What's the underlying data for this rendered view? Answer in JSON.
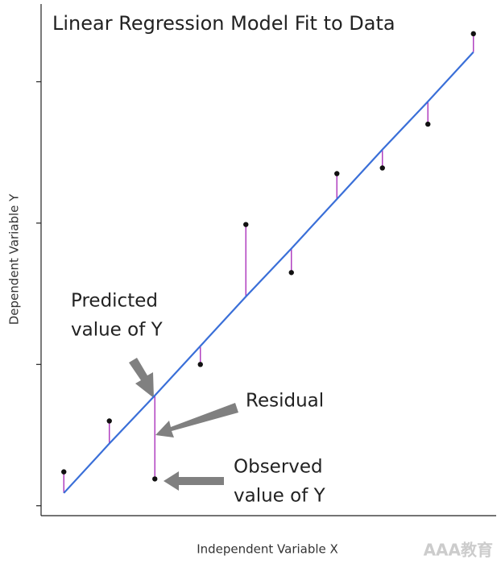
{
  "chart_data": {
    "type": "regression",
    "title": "Linear Regression Model Fit to Data",
    "x_label": "Independent Variable X",
    "y_label": "Dependent Variable Y",
    "x": [
      1,
      2,
      3,
      4,
      5,
      6,
      7,
      8,
      9,
      10
    ],
    "values": [
      0.24,
      0.6,
      0.19,
      1.0,
      1.99,
      1.65,
      2.35,
      2.39,
      2.7,
      3.34
    ],
    "fitted": [
      0.09,
      0.44,
      0.78,
      1.13,
      1.48,
      1.82,
      2.17,
      2.52,
      2.86,
      3.21
    ],
    "point_color": "#111111",
    "line_color": "#3a6fd8",
    "residual_color": "#b040c0",
    "xlim": [
      0.5,
      10.5
    ],
    "ylim": [
      -0.07,
      3.55
    ],
    "yticks": [
      0,
      1,
      2,
      3
    ],
    "annotations": [
      {
        "lines": [
          "Predicted",
          "value of Y"
        ]
      },
      {
        "lines": [
          "Residual"
        ]
      },
      {
        "lines": [
          "Observed",
          "value of Y"
        ]
      }
    ],
    "watermark": "AAA教育"
  }
}
